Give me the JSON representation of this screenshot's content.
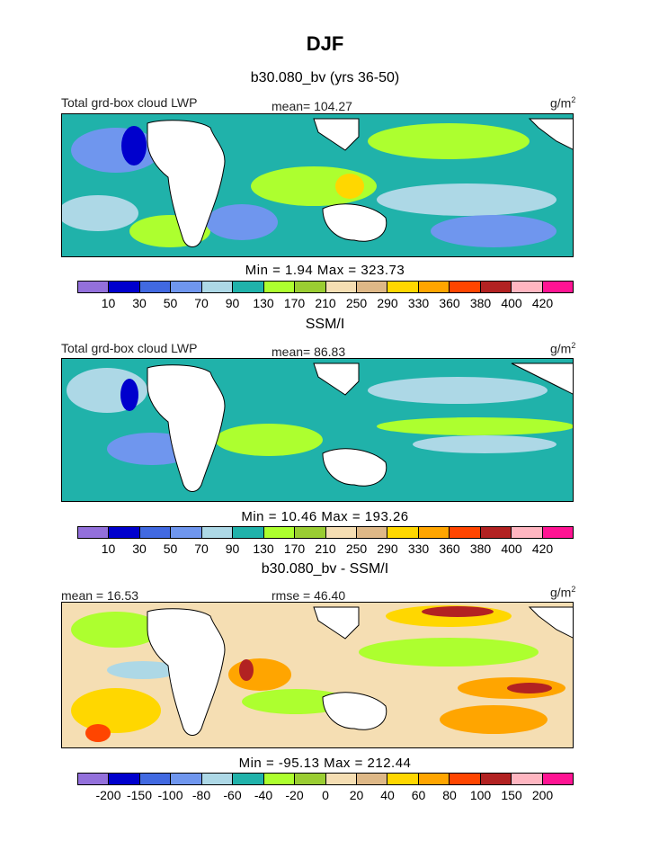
{
  "chart_data": {
    "type": "heatmap",
    "title": "DJF",
    "panels": [
      {
        "subtitle": "b30.080_bv (yrs 36-50)",
        "left_label": "Total grd-box cloud LWP",
        "center_label": "mean=  104.27",
        "unit": "g/m",
        "unit_exp": "2",
        "stats": "Min =    1.94 Max = 323.73",
        "colorbar_ticks": [
          "10",
          "30",
          "50",
          "70",
          "90",
          "130",
          "170",
          "210",
          "250",
          "290",
          "330",
          "360",
          "380",
          "400",
          "420"
        ]
      },
      {
        "subtitle": "SSM/I",
        "left_label": "Total grd-box cloud LWP",
        "center_label": "mean=   86.83",
        "unit": "g/m",
        "unit_exp": "2",
        "stats": "Min =   10.46 Max = 193.26",
        "colorbar_ticks": [
          "10",
          "30",
          "50",
          "70",
          "90",
          "130",
          "170",
          "210",
          "250",
          "290",
          "330",
          "360",
          "380",
          "400",
          "420"
        ]
      },
      {
        "subtitle": "b30.080_bv - SSM/I",
        "left_label": "mean =   16.53",
        "center_label": "rmse =   46.40",
        "unit": "g/m",
        "unit_exp": "2",
        "stats": "Min = -95.13 Max = 212.44",
        "colorbar_ticks": [
          "-200",
          "-150",
          "-100",
          "-80",
          "-60",
          "-40",
          "-20",
          "0",
          "20",
          "40",
          "60",
          "80",
          "100",
          "150",
          "200"
        ]
      }
    ],
    "colorbar_colors": [
      "#9370db",
      "#0000cd",
      "#4169e1",
      "#6f96ee",
      "#add8e6",
      "#20b2aa",
      "#adff2f",
      "#9acd32",
      "#f5deb3",
      "#deb887",
      "#ffd700",
      "#ffa500",
      "#ff4500",
      "#b22222",
      "#ffb6c1",
      "#ff1493"
    ]
  }
}
